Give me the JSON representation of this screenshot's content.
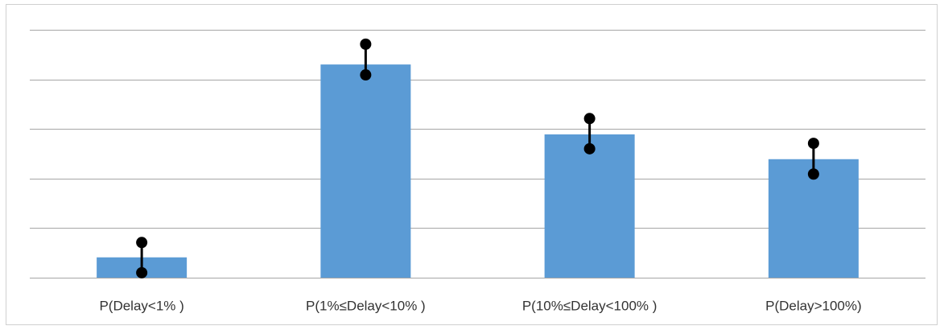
{
  "chart_data": {
    "type": "bar",
    "categories": [
      "P(Delay<1% )",
      "P(1%≤Delay<10% )",
      "P(10%≤Delay<100% )",
      "P(Delay>100%)"
    ],
    "values": [
      0.41,
      4.3,
      2.89,
      2.39
    ],
    "error_low": [
      0.1,
      4.09,
      2.6,
      2.09
    ],
    "error_high": [
      0.71,
      4.71,
      3.21,
      2.71
    ],
    "color": "#5b9bd5",
    "ylim": [
      0,
      5
    ],
    "yticks": [
      0,
      1,
      2,
      3,
      4,
      5
    ],
    "grid": true
  }
}
